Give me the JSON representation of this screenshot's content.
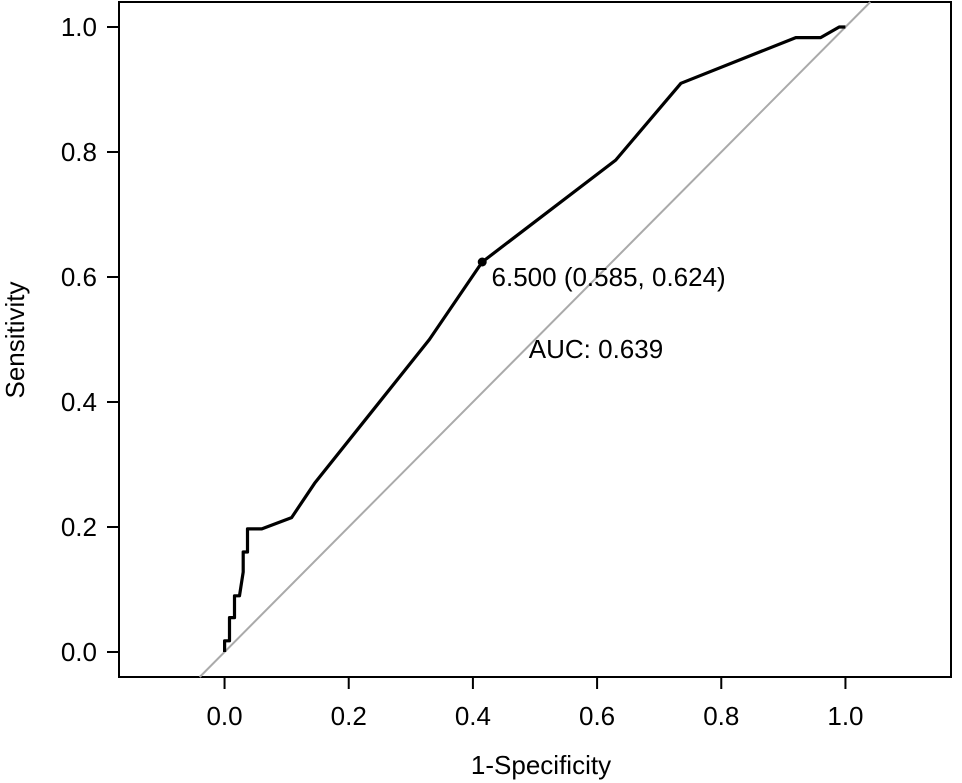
{
  "chart_data": {
    "type": "line",
    "title": "",
    "xlabel": "1-Specificity",
    "ylabel": "Sensitivity",
    "xlim": [
      -0.17,
      1.17
    ],
    "ylim": [
      -0.04,
      1.04
    ],
    "xticks": [
      0.0,
      0.2,
      0.4,
      0.6,
      0.8,
      1.0
    ],
    "xtick_labels": [
      "0.0",
      "0.2",
      "0.4",
      "0.6",
      "0.8",
      "1.0"
    ],
    "yticks": [
      0.0,
      0.2,
      0.4,
      0.6,
      0.8,
      1.0
    ],
    "ytick_labels": [
      "0.0",
      "0.2",
      "0.4",
      "0.6",
      "0.8",
      "1.0"
    ],
    "grid": false,
    "series": [
      {
        "role": "roc-curve",
        "color": "#000000",
        "x": [
          0.0,
          0.0,
          0.008,
          0.008,
          0.016,
          0.016,
          0.024,
          0.03,
          0.03,
          0.037,
          0.037,
          0.06,
          0.108,
          0.145,
          0.33,
          0.415,
          0.63,
          0.735,
          0.92,
          0.96,
          0.99,
          1.0
        ],
        "y": [
          0.0,
          0.018,
          0.018,
          0.055,
          0.055,
          0.09,
          0.09,
          0.128,
          0.16,
          0.16,
          0.197,
          0.197,
          0.215,
          0.27,
          0.5,
          0.624,
          0.787,
          0.91,
          0.983,
          0.983,
          1.0,
          1.0
        ]
      },
      {
        "role": "reference-diagonal",
        "color": "#aaaaaa",
        "x": [
          -0.04,
          1.04
        ],
        "y": [
          -0.04,
          1.04
        ]
      }
    ],
    "points": [
      {
        "x": 0.415,
        "y": 0.624
      }
    ],
    "annotations": [
      {
        "text": "6.500 (0.585, 0.624)",
        "x": 0.43,
        "y": 0.6
      },
      {
        "text": "AUC: 0.639",
        "x": 0.49,
        "y": 0.485
      }
    ]
  }
}
